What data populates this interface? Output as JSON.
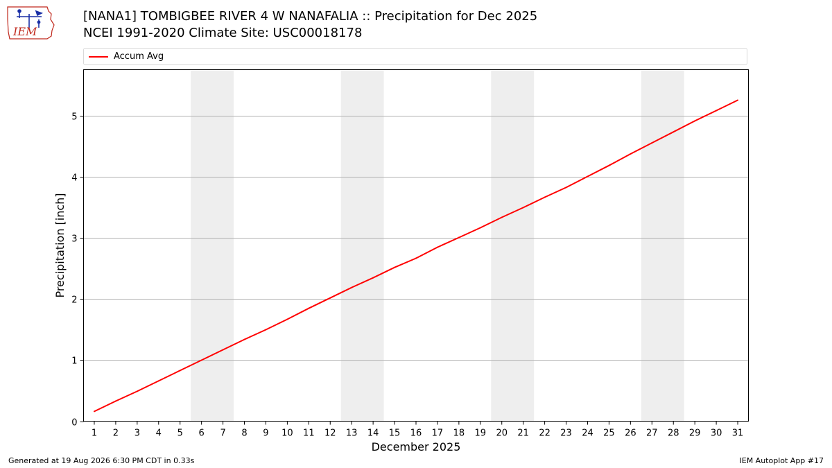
{
  "header": {
    "logo_text": "IEM",
    "title_line1": "[NANA1] TOMBIGBEE RIVER 4 W NANAFALIA :: Precipitation for Dec 2025",
    "title_line2": "NCEI 1991-2020 Climate Site: USC00018178"
  },
  "footer": {
    "generated": "Generated at 19 Aug 2026 6:30 PM CDT in 0.33s",
    "app": "IEM Autoplot App #17"
  },
  "colors": {
    "series": "#ff0000",
    "weekend_band": "#eeeeee",
    "grid": "#b0b0b0",
    "logo": "#c0281c"
  },
  "chart_data": {
    "type": "line",
    "xlabel": "December 2025",
    "ylabel": "Precipitation [inch]",
    "xlim": [
      0.5,
      31.5
    ],
    "ylim": [
      0,
      5.76
    ],
    "x": [
      1,
      2,
      3,
      4,
      5,
      6,
      7,
      8,
      9,
      10,
      11,
      12,
      13,
      14,
      15,
      16,
      17,
      18,
      19,
      20,
      21,
      22,
      23,
      24,
      25,
      26,
      27,
      28,
      29,
      30,
      31
    ],
    "x_ticks": [
      "1",
      "2",
      "3",
      "4",
      "5",
      "6",
      "7",
      "8",
      "9",
      "10",
      "11",
      "12",
      "13",
      "14",
      "15",
      "16",
      "17",
      "18",
      "19",
      "20",
      "21",
      "22",
      "23",
      "24",
      "25",
      "26",
      "27",
      "28",
      "29",
      "30",
      "31"
    ],
    "y_ticks": [
      0,
      1,
      2,
      3,
      4,
      5
    ],
    "grid": "horizontal",
    "legend_position": "top",
    "weekend_bands": [
      [
        5.5,
        7.5
      ],
      [
        12.5,
        14.5
      ],
      [
        19.5,
        21.5
      ],
      [
        26.5,
        28.5
      ]
    ],
    "series": [
      {
        "name": "Accum Avg",
        "values": [
          0.16,
          0.33,
          0.49,
          0.66,
          0.83,
          1.0,
          1.17,
          1.34,
          1.5,
          1.67,
          1.85,
          2.02,
          2.19,
          2.35,
          2.52,
          2.67,
          2.85,
          3.01,
          3.17,
          3.34,
          3.5,
          3.67,
          3.83,
          4.01,
          4.19,
          4.38,
          4.56,
          4.74,
          4.92,
          5.09,
          5.26
        ]
      }
    ]
  }
}
